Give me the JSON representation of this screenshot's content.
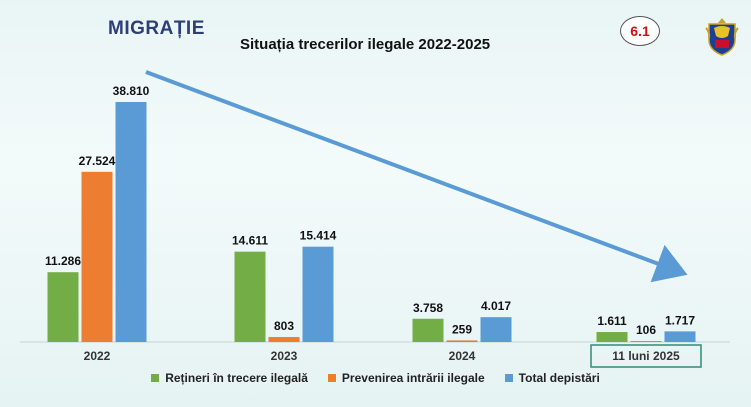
{
  "header": {
    "heading": "MIGRAȚIE",
    "badge": "6.1"
  },
  "colors": {
    "green": "#72ad45",
    "orange": "#ed7d31",
    "blue": "#5b9bd5",
    "arrow": "#5b9bd5",
    "highlight_box": "#2e8b7a"
  },
  "icons": {
    "crest": "romania-coat-of-arms-icon",
    "trend": "downward-trend-arrow"
  },
  "chart_data": {
    "type": "bar",
    "title": "Situația trecerilor ilegale 2022-2025",
    "categories": [
      "2022",
      "2023",
      "2024",
      "11 luni 2025"
    ],
    "highlighted_category": "11 luni 2025",
    "series": [
      {
        "name": "Rețineri în trecere ilegală",
        "values": [
          11286,
          14611,
          3758,
          1611
        ],
        "labels": [
          "11.286",
          "14.611",
          "3.758",
          "1.611"
        ]
      },
      {
        "name": "Prevenirea intrării ilegale",
        "values": [
          27524,
          803,
          259,
          106
        ],
        "labels": [
          "27.524",
          "803",
          "259",
          "106"
        ]
      },
      {
        "name": "Total depistări",
        "values": [
          38810,
          15414,
          4017,
          1717
        ],
        "labels": [
          "38.810",
          "15.414",
          "4.017",
          "1.717"
        ]
      }
    ],
    "ylim": [
      0,
      38810
    ],
    "grid": false,
    "legend_position": "bottom"
  }
}
